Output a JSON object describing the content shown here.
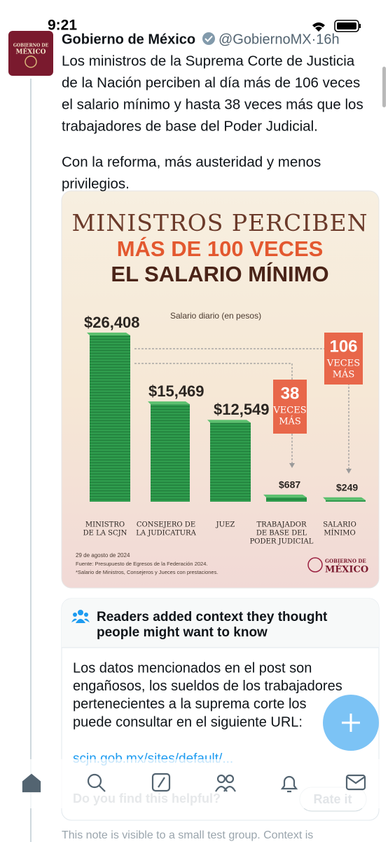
{
  "status_bar": {
    "time": "9:21"
  },
  "tweet": {
    "author": "Gobierno de México",
    "meta": "@GobiernoMX·16h",
    "avatar_text": [
      "GOBIERNO DE",
      "MÉXICO"
    ],
    "text_lines": [
      "Los ministros de la Suprema Corte de Justicia",
      "de la Nación perciben al día más de 106 veces",
      "el salario mínimo y hasta 38 veces más que los",
      "trabajadores de base del Poder Judicial.",
      "Con la reforma, más austeridad y menos",
      "privilegios."
    ]
  },
  "infographic": {
    "title_lines": [
      "MINISTROS PERCIBEN",
      "MÁS DE 100 VECES",
      "EL SALARIO MÍNIMO"
    ],
    "subtitle": "Salario diario (en pesos)",
    "categories": [
      [
        "MINISTRO",
        "DE LA SCJN"
      ],
      [
        "CONSEJERO DE",
        "LA JUDICATURA"
      ],
      [
        "JUEZ"
      ],
      [
        "TRABAJADOR",
        "DE BASE DEL",
        "PODER JUDICIAL"
      ],
      [
        "SALARIO",
        "MÍNIMO"
      ]
    ],
    "values": [
      26408,
      15469,
      12549,
      687,
      249
    ],
    "value_labels": [
      "$26,408",
      "$15,469",
      "$12,549",
      "$687",
      "$249"
    ],
    "color": "#2e9a4c",
    "callouts": [
      {
        "number": "38",
        "lines": [
          "VECES",
          "MÁS"
        ]
      },
      {
        "number": "106",
        "lines": [
          "VECES",
          "MÁS"
        ]
      }
    ],
    "footer_lines": [
      "29 de agosto de 2024",
      "Fuente: Presupuesto de Egresos de la Federación 2024.",
      "*Salario de Ministros, Consejeros y Jueces con prestaciones."
    ],
    "logo": [
      "GOBIERNO DE",
      "MÉXICO"
    ]
  },
  "community_note": {
    "header_lines": [
      "Readers added context they thought",
      "people might want to know"
    ],
    "body_lines": [
      "Los datos mencionados en el post son",
      "engañosos, los sueldos de los trabajadores",
      "pertenecientes a la suprema corte los",
      "puede consultar en el siguiente URL:"
    ],
    "link": "scjn.gob.mx/sites/default/...",
    "question": "Do you find this helpful?",
    "button": "Rate it",
    "footnote": "This note is visible to a small test group. Context is"
  }
}
